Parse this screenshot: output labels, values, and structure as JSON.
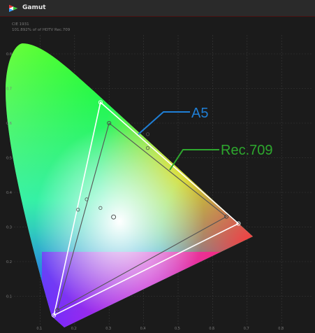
{
  "window": {
    "title": "Gamut"
  },
  "info": {
    "standard": "CIE 1931",
    "coverage": "101.892% of of HDTV Rec.709"
  },
  "chart_data": {
    "type": "scatter",
    "title": "",
    "xlabel": "",
    "ylabel": "",
    "xlim": [
      0,
      0.8
    ],
    "ylim": [
      0,
      0.9
    ],
    "grid": true,
    "x_ticks": [
      "0.1",
      "0.2",
      "0.3",
      "0.4",
      "0.5",
      "0.6",
      "0.7",
      "0.8"
    ],
    "y_ticks": [
      "0.1",
      "0.2",
      "0.3",
      "0.4",
      "0.5",
      "0.6",
      "0.7",
      "0.8"
    ],
    "annotations": [
      {
        "label": "A5",
        "color": "#1f7fd6"
      },
      {
        "label": "Rec.709",
        "color": "#2ea82e"
      }
    ],
    "series": [
      {
        "name": "A5",
        "color": "#ffffff",
        "points": [
          [
            0.675,
            0.31
          ],
          [
            0.275,
            0.66
          ],
          [
            0.14,
            0.045
          ]
        ]
      },
      {
        "name": "Rec.709",
        "color": "#555555",
        "points": [
          [
            0.64,
            0.33
          ],
          [
            0.3,
            0.6
          ],
          [
            0.15,
            0.06
          ]
        ]
      }
    ],
    "markers": [
      [
        0.412,
        0.568
      ],
      [
        0.412,
        0.528
      ],
      [
        0.235,
        0.38
      ],
      [
        0.275,
        0.355
      ],
      [
        0.21,
        0.35
      ]
    ],
    "whitepoint": [
      0.313,
      0.329
    ]
  }
}
